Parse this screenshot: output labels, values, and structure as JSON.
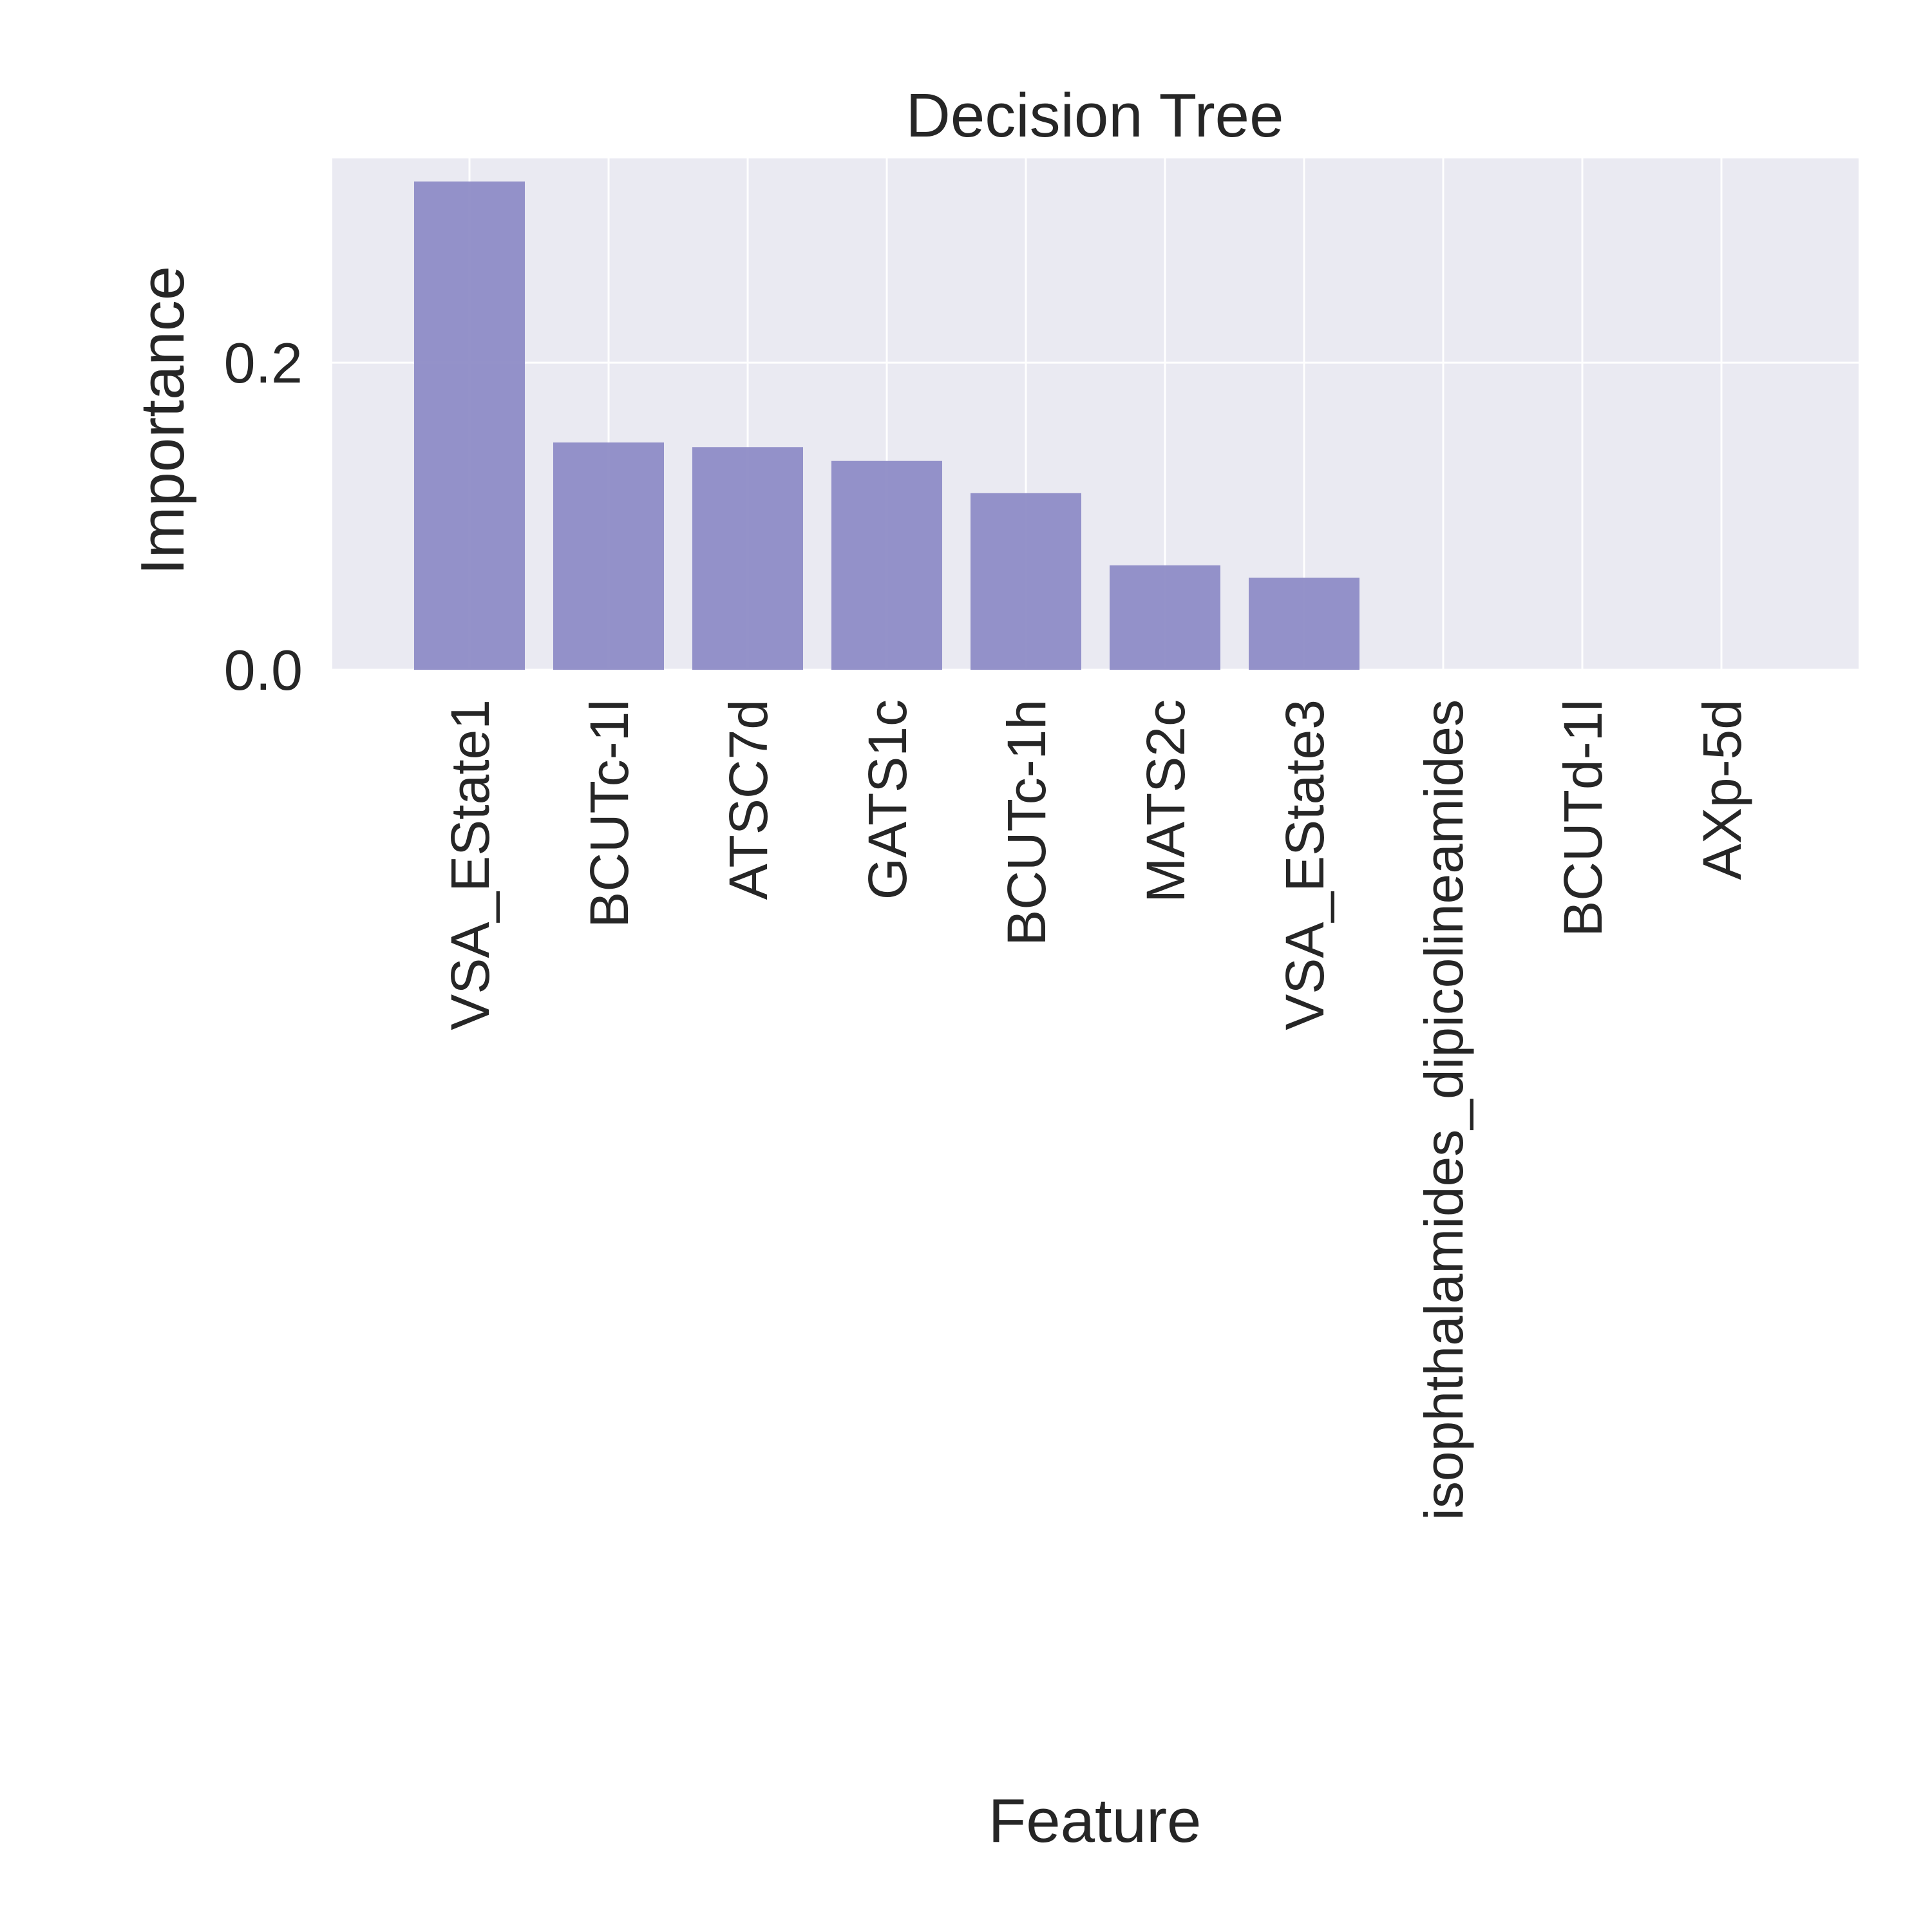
{
  "chart_data": {
    "type": "bar",
    "title": "Decision Tree",
    "xlabel": "Feature",
    "ylabel": "Importance",
    "categories": [
      "VSA_EState1",
      "BCUTc-1l",
      "ATSC7d",
      "GATS1c",
      "BCUTc-1h",
      "MATS2c",
      "VSA_EState3",
      "isophthalamides_dipicolineamides",
      "BCUTd-1l",
      "AXp-5d"
    ],
    "values": [
      0.318,
      0.148,
      0.145,
      0.136,
      0.115,
      0.068,
      0.06,
      0.0,
      0.0,
      0.0
    ],
    "ylim": [
      0,
      0.333
    ],
    "yticks": [
      0.0,
      0.2
    ],
    "ytick_labels": [
      "0.0",
      "0.2"
    ],
    "grid": true,
    "colors": {
      "bar": "#8e8cc6",
      "plot_background": "#eaeaf2",
      "grid": "#ffffff",
      "text": "#262626"
    }
  }
}
